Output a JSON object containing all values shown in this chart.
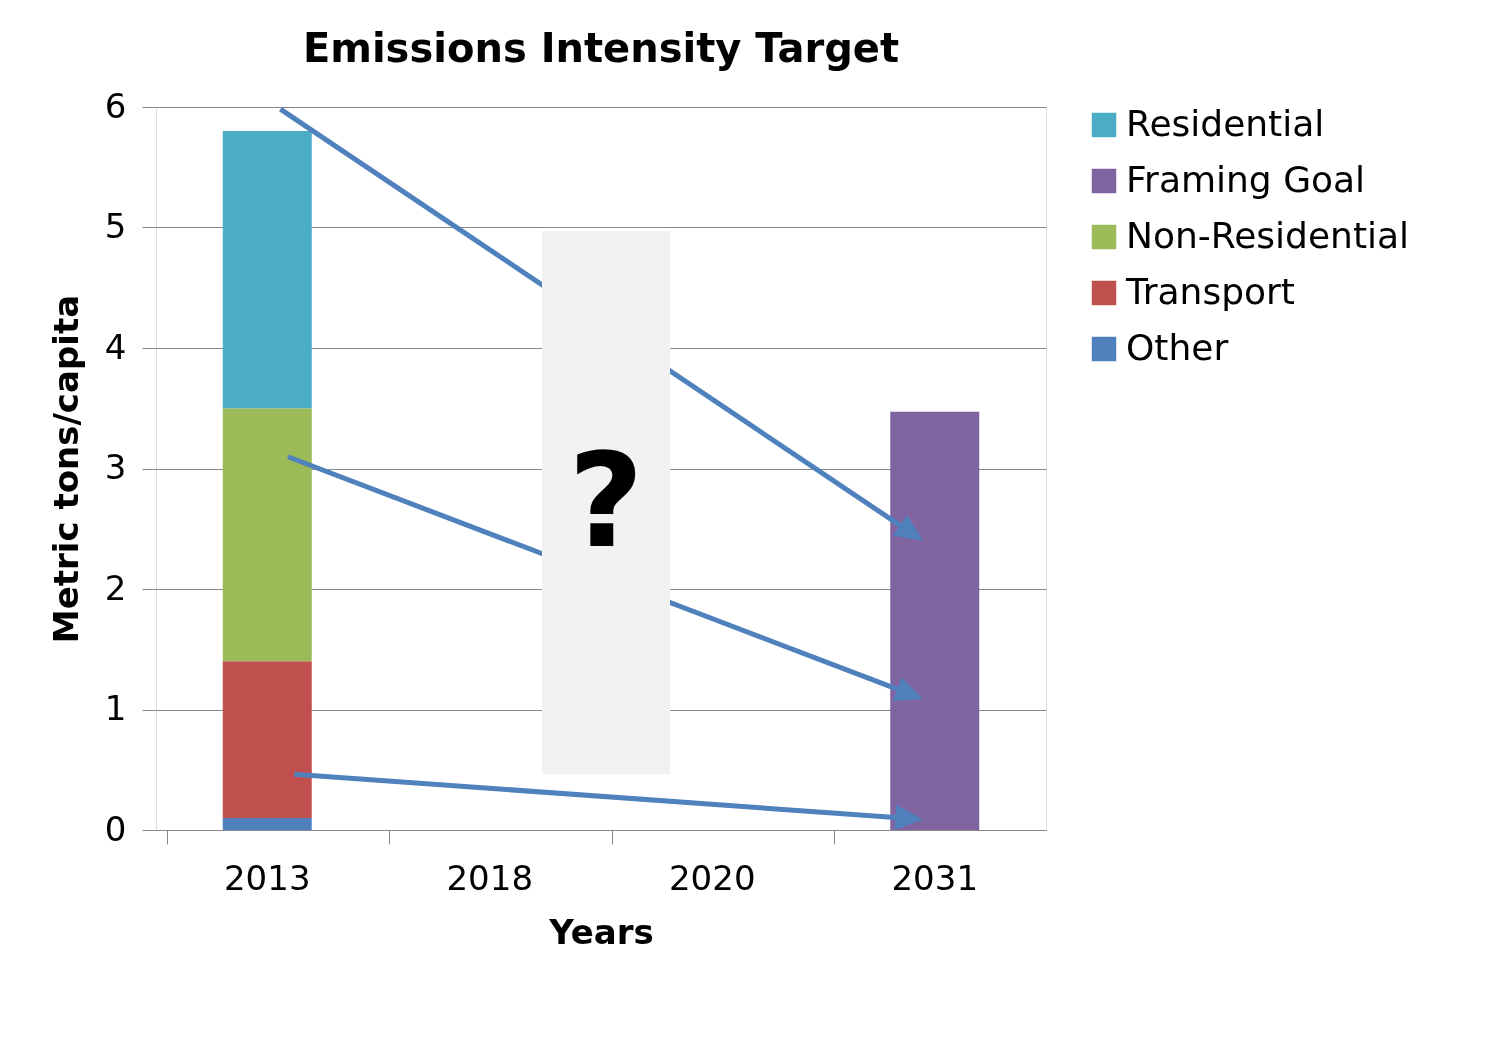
{
  "chart_data": {
    "type": "bar",
    "title": "Emissions Intensity Target",
    "xlabel": "Years",
    "ylabel": "Metric tons/capita",
    "categories": [
      "2013",
      "2018",
      "2020",
      "2031"
    ],
    "stacked": true,
    "series": [
      {
        "name": "Other",
        "color": "#4f81bd",
        "values": [
          0.1,
          null,
          null,
          null
        ]
      },
      {
        "name": "Transport",
        "color": "#c0504d",
        "values": [
          1.3,
          null,
          null,
          null
        ]
      },
      {
        "name": "Non-Residential",
        "color": "#9bbb59",
        "values": [
          2.1,
          null,
          null,
          null
        ]
      },
      {
        "name": "Framing Goal",
        "color": "#8064a2",
        "values": [
          null,
          null,
          null,
          3.47
        ]
      },
      {
        "name": "Residential",
        "color": "#4bacc6",
        "values": [
          2.3,
          null,
          null,
          null
        ]
      }
    ],
    "ylim": [
      0,
      6
    ],
    "yticks": [
      0,
      1,
      2,
      3,
      4,
      5,
      6
    ],
    "grid": "y",
    "legend": "right",
    "annotations": [
      "?"
    ]
  }
}
